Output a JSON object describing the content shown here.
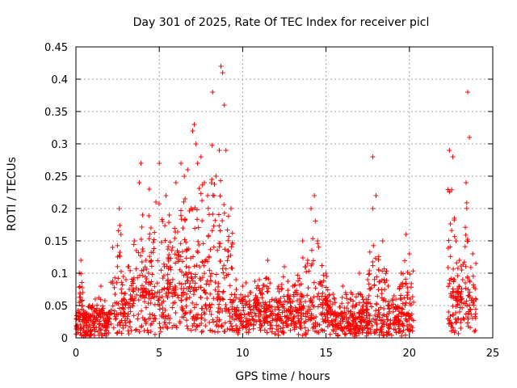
{
  "chart_data": {
    "type": "scatter",
    "title": "Day 301 of 2025, Rate Of TEC Index for receiver picl",
    "xlabel": "GPS time / hours",
    "ylabel": "ROTI / TECUs",
    "xlim": [
      0,
      25
    ],
    "ylim": [
      0,
      0.45
    ],
    "xticks": [
      "0",
      "5",
      "10",
      "15",
      "20",
      "25"
    ],
    "yticks": [
      "0",
      "0.05",
      "0.1",
      "0.15",
      "0.2",
      "0.25",
      "0.3",
      "0.35",
      "0.4",
      "0.45"
    ],
    "grid": true,
    "marker": "+",
    "color": "#ff0000",
    "series": [
      {
        "x": [
          0.1,
          0.2,
          0.3,
          0.4,
          0.5,
          1.0,
          1.5,
          2.0,
          2.2,
          2.6,
          2.7,
          3.0,
          3.5,
          3.8,
          3.9,
          4.0,
          4.2,
          4.4,
          4.5,
          4.8,
          5.0,
          5.2,
          5.4,
          5.6,
          5.8,
          6.0,
          6.3,
          6.5,
          6.7,
          6.9,
          7.0,
          7.1,
          7.2,
          7.3,
          7.5,
          7.7,
          7.9,
          8.2,
          8.4,
          8.6,
          8.7,
          8.8,
          8.9,
          9.0,
          9.3,
          9.6,
          10.0,
          10.5,
          11.0,
          11.5,
          12.0,
          12.5,
          13.0,
          13.6,
          13.9,
          14.1,
          14.3,
          14.5,
          15.0,
          15.5,
          16.0,
          16.5,
          17.0,
          17.5,
          17.8,
          18.0,
          18.4,
          19.0,
          19.5,
          19.8,
          20.0,
          22.4,
          22.6,
          22.8,
          23.0,
          23.2,
          23.4,
          23.5,
          23.6,
          23.8
        ],
        "y": [
          0.02,
          0.1,
          0.12,
          0.07,
          0.03,
          0.05,
          0.08,
          0.04,
          0.14,
          0.2,
          0.16,
          0.09,
          0.15,
          0.24,
          0.27,
          0.19,
          0.12,
          0.23,
          0.17,
          0.21,
          0.27,
          0.18,
          0.22,
          0.19,
          0.14,
          0.24,
          0.27,
          0.25,
          0.26,
          0.2,
          0.32,
          0.33,
          0.3,
          0.27,
          0.28,
          0.24,
          0.22,
          0.38,
          0.25,
          0.29,
          0.42,
          0.41,
          0.36,
          0.29,
          0.2,
          0.09,
          0.08,
          0.07,
          0.09,
          0.12,
          0.06,
          0.11,
          0.08,
          0.15,
          0.12,
          0.2,
          0.22,
          0.15,
          0.1,
          0.06,
          0.08,
          0.07,
          0.1,
          0.09,
          0.28,
          0.22,
          0.15,
          0.06,
          0.1,
          0.16,
          0.13,
          0.29,
          0.28,
          0.15,
          0.12,
          0.09,
          0.24,
          0.38,
          0.31,
          0.13
        ],
        "base": [
          0.02,
          0.03,
          0.03,
          0.03,
          0.02,
          0.02,
          0.02,
          0.02,
          0.03,
          0.03,
          0.03,
          0.03,
          0.04,
          0.04,
          0.04,
          0.04,
          0.04,
          0.04,
          0.04,
          0.04,
          0.04,
          0.04,
          0.04,
          0.05,
          0.05,
          0.05,
          0.05,
          0.05,
          0.05,
          0.05,
          0.05,
          0.05,
          0.05,
          0.05,
          0.05,
          0.05,
          0.05,
          0.05,
          0.04,
          0.04,
          0.04,
          0.04,
          0.04,
          0.04,
          0.04,
          0.03,
          0.03,
          0.03,
          0.03,
          0.03,
          0.03,
          0.03,
          0.03,
          0.03,
          0.03,
          0.03,
          0.03,
          0.03,
          0.03,
          0.02,
          0.02,
          0.02,
          0.02,
          0.02,
          0.02,
          0.02,
          0.02,
          0.02,
          0.02,
          0.02,
          0.02,
          0.04,
          0.04,
          0.04,
          0.04,
          0.04,
          0.04,
          0.04,
          0.04,
          0.03
        ]
      }
    ]
  }
}
